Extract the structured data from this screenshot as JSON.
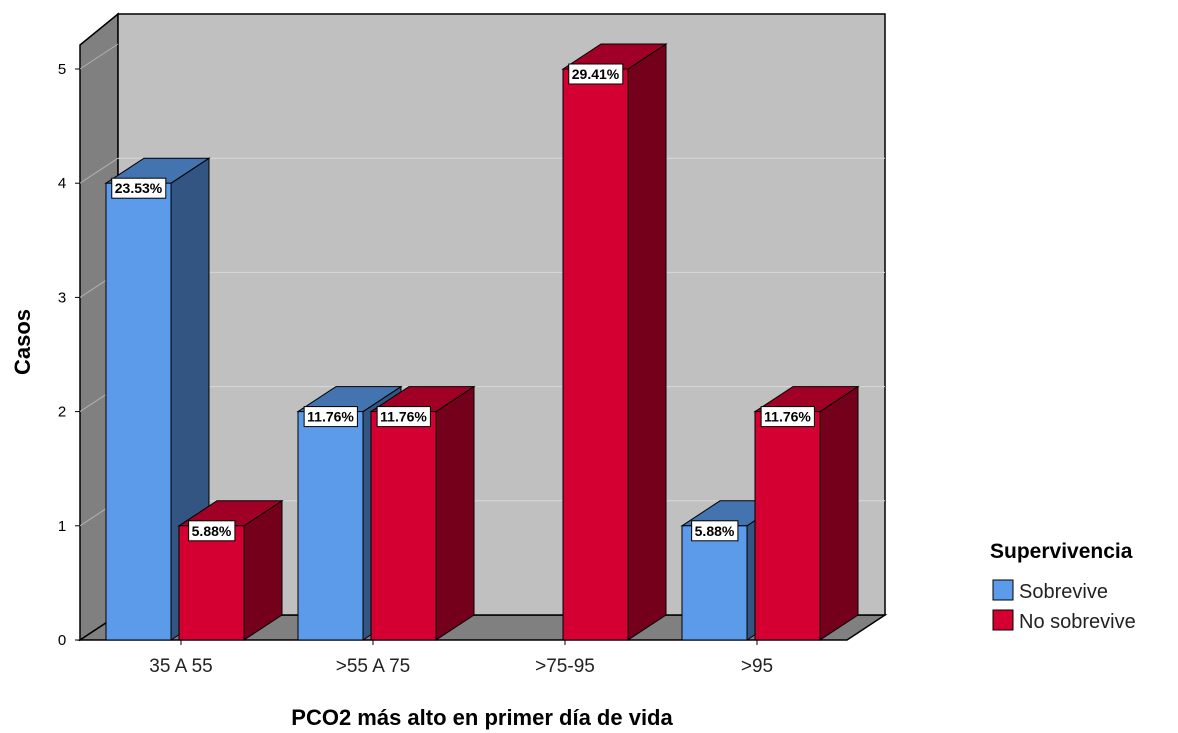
{
  "chart_data": {
    "type": "bar",
    "style": "3d-clustered",
    "xlabel": "PCO2 más alto en primer día de vida",
    "ylabel": "Casos",
    "categories": [
      "35 A 55",
      ">55 A 75",
      ">75-95",
      ">95"
    ],
    "ylim": [
      0,
      5
    ],
    "yticks": [
      0,
      1,
      2,
      3,
      4,
      5
    ],
    "grid": true,
    "legend": {
      "title": "Supervivencia",
      "position": "right"
    },
    "series": [
      {
        "name": "Sobrevive",
        "color": "#5b9bea",
        "values": [
          4,
          2,
          0,
          1
        ],
        "labels": [
          "23.53%",
          "11.76%",
          "",
          "5.88%"
        ]
      },
      {
        "name": "No sobrevive",
        "color": "#d50032",
        "values": [
          1,
          2,
          5,
          2
        ],
        "labels": [
          "5.88%",
          "11.76%",
          "29.41%",
          "11.76%"
        ]
      }
    ]
  }
}
